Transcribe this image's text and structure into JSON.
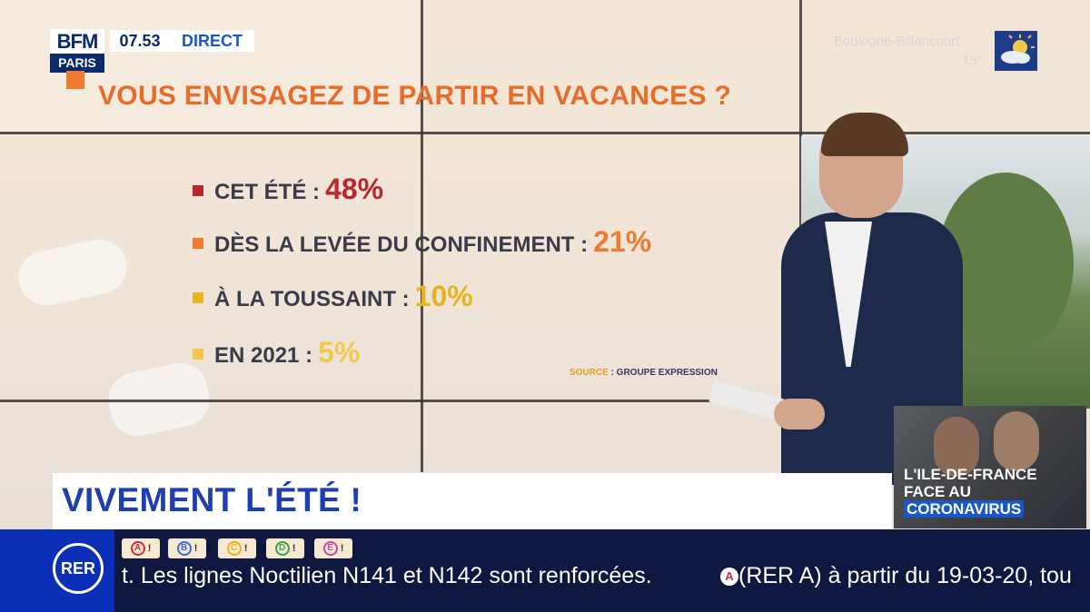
{
  "channel": {
    "logo_top": "BFM",
    "logo_bottom": "PARIS",
    "time": "07.53",
    "live_label": "DIRECT"
  },
  "weather": {
    "city": "Boulogne-Billancourt",
    "temp": "15°"
  },
  "graphic": {
    "question": "VOUS ENVISAGEZ DE PARTIR EN VACANCES ?",
    "items": [
      {
        "label": "CET ÉTÉ :",
        "value": "48%",
        "color": "#b8282e"
      },
      {
        "label": "DÈS LA LEVÉE DU CONFINEMENT :",
        "value": "21%",
        "color": "#f07a2f"
      },
      {
        "label": "À LA TOUSSAINT :",
        "value": "10%",
        "color": "#e6b41e"
      },
      {
        "label": "EN 2021 :",
        "value": "5%",
        "color": "#f2c94c"
      }
    ],
    "source_label": "SOURCE",
    "source_value": ": GROUPE EXPRESSION"
  },
  "headline": "VIVEMENT L'ÉTÉ !",
  "inset": {
    "line1": "L'ILE-DE-FRANCE",
    "line2": "FACE AU",
    "line3": "CORONAVIRUS"
  },
  "ticker": {
    "rer_label": "RER",
    "lines": [
      {
        "letter": "A",
        "color": "#d32a3b"
      },
      {
        "letter": "B",
        "color": "#3b6ad6"
      },
      {
        "letter": "C",
        "color": "#e6b41e"
      },
      {
        "letter": "D",
        "color": "#3aa54a"
      },
      {
        "letter": "E",
        "color": "#c04aa6"
      }
    ],
    "text1": "t. Les lignes Noctilien N141 et N142 sont renforcées.",
    "text2_badge": "A",
    "text2": "(RER A) à partir du 19-03-20, tou"
  }
}
